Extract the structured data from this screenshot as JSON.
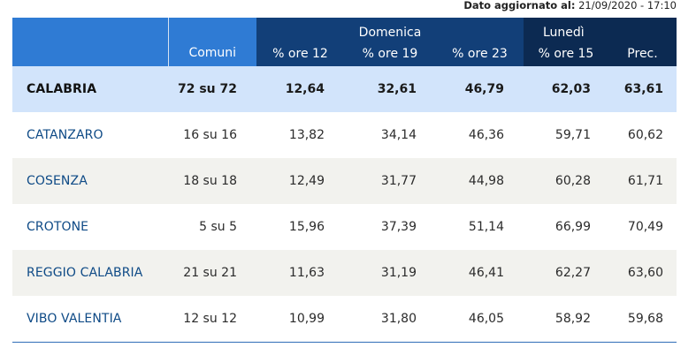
{
  "updated": {
    "label": "Dato aggiornato al:",
    "value": "21/09/2020 - 17:10"
  },
  "header": {
    "group_sunday": "Domenica",
    "group_monday": "Lunedì",
    "comuni": "Comuni",
    "sun_12": "% ore 12",
    "sun_19": "% ore 19",
    "sun_23": "% ore 23",
    "mon_15": "% ore 15",
    "prec": "Prec."
  },
  "colors": {
    "header_light": "#2f7bd4",
    "header_mid": "#123f78",
    "header_dark": "#0c2a52",
    "total_row": "#d2e4fb",
    "alt_row": "#f2f2ee",
    "link": "#0e4a86"
  },
  "rows": [
    {
      "name": "CALABRIA",
      "comuni": "72 su 72",
      "o12": "12,64",
      "o19": "32,61",
      "o23": "46,79",
      "o15": "62,03",
      "prec": "63,61"
    },
    {
      "name": "CATANZARO",
      "comuni": "16 su 16",
      "o12": "13,82",
      "o19": "34,14",
      "o23": "46,36",
      "o15": "59,71",
      "prec": "60,62"
    },
    {
      "name": "COSENZA",
      "comuni": "18 su 18",
      "o12": "12,49",
      "o19": "31,77",
      "o23": "44,98",
      "o15": "60,28",
      "prec": "61,71"
    },
    {
      "name": "CROTONE",
      "comuni": "5 su 5",
      "o12": "15,96",
      "o19": "37,39",
      "o23": "51,14",
      "o15": "66,99",
      "prec": "70,49"
    },
    {
      "name": "REGGIO CALABRIA",
      "comuni": "21 su 21",
      "o12": "11,63",
      "o19": "31,19",
      "o23": "46,41",
      "o15": "62,27",
      "prec": "63,60"
    },
    {
      "name": "VIBO VALENTIA",
      "comuni": "12 su 12",
      "o12": "10,99",
      "o19": "31,80",
      "o23": "46,05",
      "o15": "58,92",
      "prec": "59,68"
    }
  ]
}
